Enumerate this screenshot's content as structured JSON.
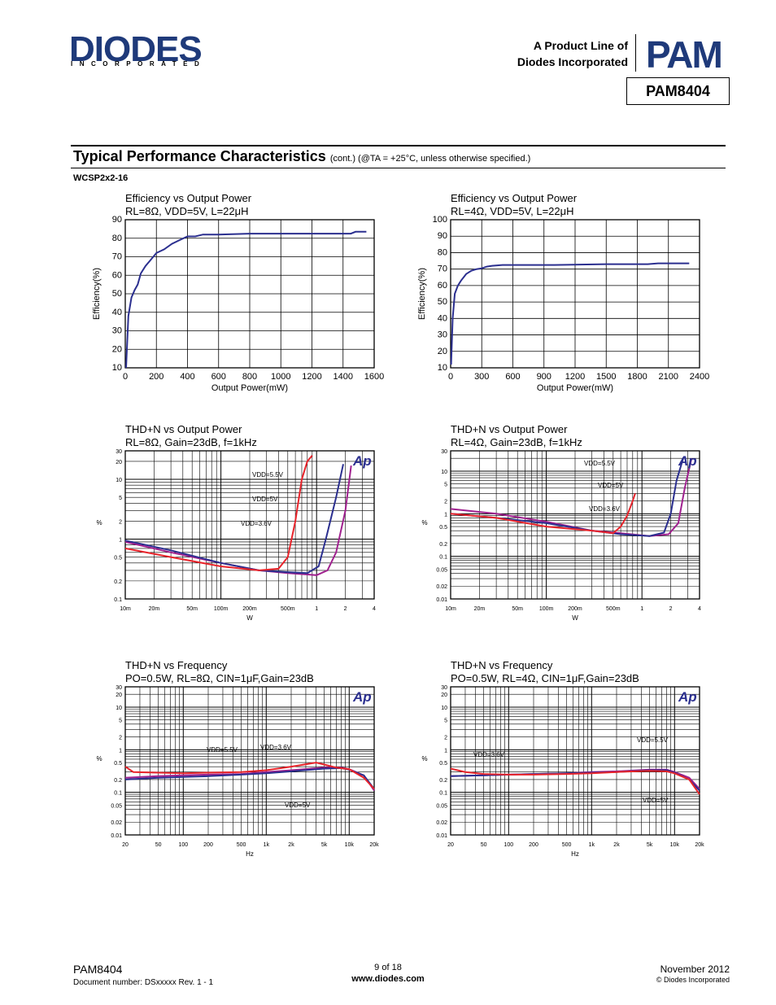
{
  "header": {
    "logo": "DIODES",
    "logo_sub": "INCORPORATED",
    "product_line_1": "A Product Line of",
    "product_line_2": "Diodes Incorporated",
    "pam_logo": "PAM",
    "part": "PAM8404"
  },
  "section": {
    "title": "Typical Performance Characteristics",
    "note": "(cont.) (@TA = +25°C, unless otherwise specified.)",
    "package": "WCSP2x2-16"
  },
  "footer": {
    "part": "PAM8404",
    "doc": "Document number: DSxxxxx Rev. 1 - 1",
    "page": "9 of 18",
    "url": "www.diodes.com",
    "date": "November 2012",
    "copyright": "© Diodes Incorporated"
  },
  "colors": {
    "navy": "#2b2f8f",
    "red": "#e8242b",
    "purple": "#a0218f",
    "logo": "#1f3a7a"
  },
  "chart_data": [
    {
      "type": "line",
      "title": "Efficiency vs Output Power",
      "subtitle": "RL=8Ω, VDD=5V, L=22μH",
      "xlabel": "Output Power(mW)",
      "ylabel": "Efficiency(%)",
      "xscale": "linear",
      "yscale": "linear",
      "xlim": [
        0,
        1600
      ],
      "ylim": [
        10,
        90
      ],
      "grid": true,
      "xticks": [
        "0",
        "200",
        "400",
        "600",
        "800",
        "1000",
        "1200",
        "1400",
        "1600"
      ],
      "yticks": [
        "10",
        "20",
        "30",
        "40",
        "50",
        "60",
        "70",
        "80",
        "90"
      ],
      "series": [
        {
          "color": "#2b2f8f",
          "x": [
            5,
            20,
            40,
            60,
            80,
            100,
            130,
            160,
            200,
            250,
            300,
            350,
            400,
            450,
            500,
            600,
            800,
            1000,
            1200,
            1450,
            1480,
            1550
          ],
          "y": [
            10,
            38,
            48,
            52,
            55,
            61,
            65,
            68,
            72,
            74,
            77,
            79,
            81,
            81,
            82,
            82,
            82.5,
            82.5,
            82.5,
            82.5,
            83.5,
            83.5
          ]
        }
      ]
    },
    {
      "type": "line",
      "title": "Efficiency vs Output Power",
      "subtitle": "RL=4Ω, VDD=5V, L=22μH",
      "xlabel": "Output Power(mW)",
      "ylabel": "Efficiency(%)",
      "xscale": "linear",
      "yscale": "linear",
      "xlim": [
        0,
        2400
      ],
      "ylim": [
        10,
        100
      ],
      "grid": true,
      "xticks": [
        "0",
        "300",
        "600",
        "900",
        "1200",
        "1500",
        "1800",
        "2100",
        "2400"
      ],
      "yticks": [
        "10",
        "20",
        "30",
        "40",
        "50",
        "60",
        "70",
        "80",
        "90",
        "100"
      ],
      "series": [
        {
          "color": "#2b2f8f",
          "x": [
            5,
            20,
            40,
            70,
            100,
            150,
            200,
            250,
            300,
            350,
            400,
            500,
            700,
            1000,
            1500,
            1900,
            2000,
            2300
          ],
          "y": [
            12,
            40,
            55,
            60,
            63,
            67,
            69,
            70,
            70.5,
            71.5,
            72,
            72.5,
            72.5,
            72.5,
            73,
            73,
            73.5,
            73.5
          ]
        }
      ]
    },
    {
      "type": "line",
      "title": "THD+N vs Output Power",
      "subtitle": "RL=8Ω, Gain=23dB, f=1kHz",
      "xlabel": "W",
      "ylabel": "%",
      "xscale": "log",
      "yscale": "log",
      "xlim": [
        0.01,
        4
      ],
      "ylim": [
        0.1,
        30
      ],
      "grid": true,
      "xticks": [
        "10m",
        "20m",
        "50m",
        "100m",
        "200m",
        "500m",
        "1",
        "2",
        "4"
      ],
      "yticks": [
        "0.1",
        "0.2",
        "0.5",
        "1",
        "2",
        "5",
        "10",
        "20",
        "30"
      ],
      "annotations": [
        "VDD=5.5V",
        "VDD=5V",
        "VDD=3.6V"
      ],
      "series": [
        {
          "name": "VDD=5.5V",
          "color": "#a0218f",
          "x": [
            0.01,
            0.03,
            0.1,
            0.25,
            0.5,
            1,
            1.3,
            1.6,
            2,
            2.3
          ],
          "y": [
            0.9,
            0.6,
            0.4,
            0.3,
            0.27,
            0.25,
            0.3,
            0.6,
            3,
            17
          ]
        },
        {
          "name": "VDD=5V",
          "color": "#2b2f8f",
          "x": [
            0.01,
            0.03,
            0.1,
            0.25,
            0.5,
            0.8,
            1.05,
            1.25,
            1.6,
            1.9
          ],
          "y": [
            0.95,
            0.65,
            0.4,
            0.3,
            0.28,
            0.27,
            0.35,
            1,
            5,
            18
          ]
        },
        {
          "name": "VDD=3.6V",
          "color": "#e8242b",
          "x": [
            0.01,
            0.03,
            0.1,
            0.25,
            0.4,
            0.5,
            0.6,
            0.7,
            0.8,
            0.9
          ],
          "y": [
            0.7,
            0.5,
            0.35,
            0.3,
            0.32,
            0.5,
            2,
            10,
            20,
            25
          ]
        }
      ]
    },
    {
      "type": "line",
      "title": "THD+N vs Output Power",
      "subtitle": "RL=4Ω, Gain=23dB, f=1kHz",
      "xlabel": "W",
      "ylabel": "%",
      "xscale": "log",
      "yscale": "log",
      "xlim": [
        0.01,
        4
      ],
      "ylim": [
        0.01,
        30
      ],
      "grid": true,
      "xticks": [
        "10m",
        "20m",
        "50m",
        "100m",
        "200m",
        "500m",
        "1",
        "2",
        "4"
      ],
      "yticks": [
        "0.01",
        "0.02",
        "0.05",
        "0.1",
        "0.2",
        "0.5",
        "1",
        "2",
        "5",
        "10",
        "30"
      ],
      "annotations": [
        "VDD=5.5V",
        "VDD=5V",
        "VDD=3.6V"
      ],
      "series": [
        {
          "name": "VDD=5.5V",
          "color": "#a0218f",
          "x": [
            0.01,
            0.03,
            0.1,
            0.3,
            0.6,
            1.2,
            1.9,
            2.4,
            2.8,
            3.3
          ],
          "y": [
            1.3,
            1,
            0.65,
            0.4,
            0.35,
            0.3,
            0.33,
            0.6,
            4,
            20
          ]
        },
        {
          "name": "VDD=5V",
          "color": "#2b2f8f",
          "x": [
            0.01,
            0.03,
            0.1,
            0.3,
            0.6,
            1.2,
            1.7,
            2.0,
            2.3,
            2.7
          ],
          "y": [
            1,
            0.8,
            0.6,
            0.4,
            0.33,
            0.3,
            0.36,
            1,
            6,
            20
          ]
        },
        {
          "name": "VDD=3.6V",
          "color": "#e8242b",
          "x": [
            0.01,
            0.03,
            0.1,
            0.3,
            0.5,
            0.6,
            0.7,
            0.8,
            0.85
          ],
          "y": [
            1,
            0.8,
            0.5,
            0.4,
            0.35,
            0.5,
            0.9,
            2,
            3
          ]
        }
      ]
    },
    {
      "type": "line",
      "title": "THD+N vs Frequency",
      "subtitle": "PO=0.5W, RL=8Ω, CIN=1μF,Gain=23dB",
      "xlabel": "Hz",
      "ylabel": "%",
      "xscale": "log",
      "yscale": "log",
      "xlim": [
        20,
        20000
      ],
      "ylim": [
        0.01,
        30
      ],
      "grid": true,
      "xticks": [
        "20",
        "50",
        "100",
        "200",
        "500",
        "1k",
        "2k",
        "5k",
        "10k",
        "20k"
      ],
      "yticks": [
        "0.01",
        "0.02",
        "0.05",
        "0.1",
        "0.2",
        "0.5",
        "1",
        "2",
        "5",
        "10",
        "20",
        "30"
      ],
      "annotations": [
        "VDD=5.5V",
        "VDD=3.6V",
        "VDD=5V"
      ],
      "series": [
        {
          "name": "VDD=5.5V",
          "color": "#a0218f",
          "x": [
            20,
            50,
            100,
            200,
            500,
            1000,
            2000,
            5000,
            8000,
            10000,
            15000,
            20000
          ],
          "y": [
            0.22,
            0.24,
            0.25,
            0.26,
            0.27,
            0.3,
            0.33,
            0.38,
            0.38,
            0.35,
            0.25,
            0.11
          ]
        },
        {
          "name": "VDD=5V",
          "color": "#2b2f8f",
          "x": [
            20,
            50,
            100,
            200,
            500,
            1000,
            2000,
            5000,
            8000,
            10000,
            15000,
            20000
          ],
          "y": [
            0.2,
            0.22,
            0.23,
            0.24,
            0.26,
            0.28,
            0.31,
            0.36,
            0.37,
            0.34,
            0.25,
            0.12
          ]
        },
        {
          "name": "VDD=3.6V",
          "color": "#e8242b",
          "x": [
            20,
            25,
            50,
            100,
            200,
            500,
            1000,
            2000,
            4000,
            5000,
            7000,
            10000,
            15000,
            20000
          ],
          "y": [
            0.4,
            0.3,
            0.29,
            0.28,
            0.29,
            0.3,
            0.33,
            0.4,
            0.5,
            0.45,
            0.38,
            0.35,
            0.22,
            0.12
          ]
        }
      ]
    },
    {
      "type": "line",
      "title": "THD+N vs Frequency",
      "subtitle": "PO=0.5W, RL=4Ω, CIN=1μF,Gain=23dB",
      "xlabel": "Hz",
      "ylabel": "%",
      "xscale": "log",
      "yscale": "log",
      "xlim": [
        20,
        20000
      ],
      "ylim": [
        0.01,
        30
      ],
      "grid": true,
      "xticks": [
        "20",
        "50",
        "100",
        "200",
        "500",
        "1k",
        "2k",
        "5k",
        "10k",
        "20k"
      ],
      "yticks": [
        "0.01",
        "0.02",
        "0.05",
        "0.1",
        "0.2",
        "0.5",
        "1",
        "2",
        "5",
        "10",
        "20",
        "30"
      ],
      "annotations": [
        "VDD=3.6V",
        "VDD=5.5V",
        "VDD=5V"
      ],
      "series": [
        {
          "name": "VDD=5.5V",
          "color": "#a0218f",
          "x": [
            20,
            50,
            100,
            200,
            500,
            1000,
            2000,
            5000,
            8000,
            10000,
            15000,
            20000
          ],
          "y": [
            0.24,
            0.25,
            0.26,
            0.27,
            0.28,
            0.3,
            0.31,
            0.34,
            0.34,
            0.3,
            0.22,
            0.12
          ]
        },
        {
          "name": "VDD=5V",
          "color": "#2b2f8f",
          "x": [
            20,
            50,
            100,
            200,
            500,
            1000,
            2000,
            5000,
            8000,
            10000,
            15000,
            20000
          ],
          "y": [
            0.24,
            0.25,
            0.26,
            0.27,
            0.28,
            0.29,
            0.3,
            0.33,
            0.33,
            0.29,
            0.2,
            0.11
          ]
        },
        {
          "name": "VDD=3.6V",
          "color": "#e8242b",
          "x": [
            20,
            30,
            50,
            100,
            200,
            500,
            1000,
            2000,
            5000,
            8000,
            10000,
            15000,
            20000
          ],
          "y": [
            0.36,
            0.3,
            0.27,
            0.26,
            0.26,
            0.27,
            0.28,
            0.3,
            0.32,
            0.31,
            0.28,
            0.2,
            0.09
          ]
        }
      ]
    }
  ]
}
